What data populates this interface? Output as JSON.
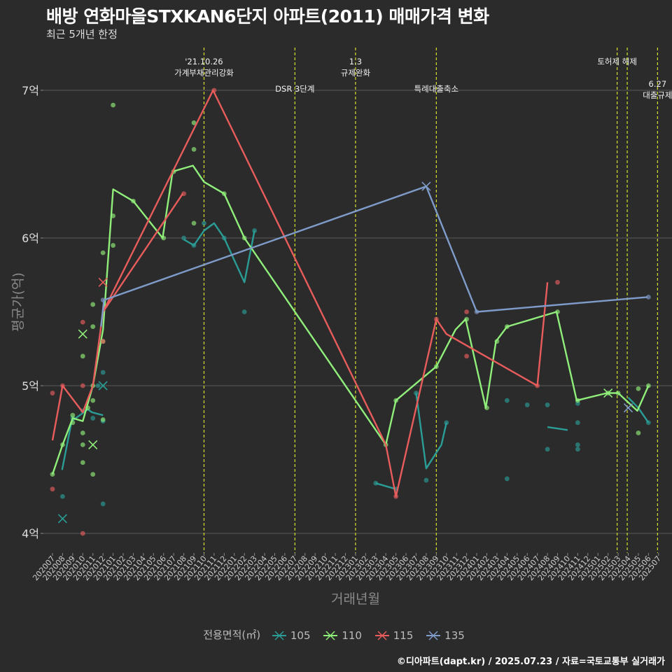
{
  "title": "배방 연화마을STXKAN6단지 아파트(2011) 매매가격 변화",
  "subtitle": "최근 5개년 한정",
  "caption": "©디아파트(dapt.kr) / 2025.07.23 / 자료=국토교통부 실거래가",
  "colors": {
    "background": "#2b2b2b",
    "grid": "#5a5a5a",
    "vline": "#d4e02a",
    "s105": "#2a9d96",
    "s110": "#90ee7a",
    "s115": "#e85c5c",
    "s135": "#7f9bc9"
  },
  "legend": {
    "title": "전용면적(㎡)",
    "items": [
      {
        "label": "105",
        "color": "#2a9d96"
      },
      {
        "label": "110",
        "color": "#90ee7a"
      },
      {
        "label": "115",
        "color": "#e85c5c"
      },
      {
        "label": "135",
        "color": "#7f9bc9"
      }
    ]
  },
  "chart_data": {
    "type": "line",
    "title": "배방 연화마을STXKAN6단지 아파트(2011) 매매가격 변화",
    "xlabel": "거래년월",
    "ylabel": "평균가(억)",
    "ylim": [
      3.85,
      7.3
    ],
    "yticks": [
      {
        "value": 4,
        "label": "4억"
      },
      {
        "value": 5,
        "label": "5억"
      },
      {
        "value": 6,
        "label": "6억"
      },
      {
        "value": 7,
        "label": "7억"
      }
    ],
    "categories": [
      "202007",
      "202008",
      "202009",
      "202010",
      "202011",
      "202012",
      "202101",
      "202102",
      "202103",
      "202104",
      "202105",
      "202106",
      "202107",
      "202108",
      "202109",
      "202110",
      "202111",
      "202112",
      "202201",
      "202202",
      "202203",
      "202204",
      "202205",
      "202206",
      "202207",
      "202208",
      "202209",
      "202210",
      "202211",
      "202212",
      "202301",
      "202302",
      "202303",
      "202304",
      "202305",
      "202306",
      "202307",
      "202308",
      "202309",
      "202310",
      "202311",
      "202312",
      "202401",
      "202402",
      "202403",
      "202404",
      "202405",
      "202406",
      "202407",
      "202408",
      "202409",
      "202410",
      "202411",
      "202412",
      "202501",
      "202502",
      "202503",
      "202504",
      "202505",
      "202506",
      "202507"
    ],
    "annotations": [
      {
        "at": 15.0,
        "lines": [
          "'21.10.26",
          "가계부채관리강화"
        ],
        "level": 0
      },
      {
        "at": 24.0,
        "lines": [
          "DSR 3단계"
        ],
        "level": 1
      },
      {
        "at": 30.0,
        "lines": [
          "1.3",
          "규제완화"
        ],
        "level": 0
      },
      {
        "at": 38.0,
        "lines": [
          "특례대출축소"
        ],
        "level": 1
      },
      {
        "at": 55.9,
        "lines": [
          "토허제 해제"
        ],
        "level": 0
      },
      {
        "at": 56.9,
        "lines": [],
        "level": 0
      },
      {
        "at": 59.9,
        "lines": [
          "6.27",
          "대출규제"
        ],
        "level": 2
      }
    ],
    "series": [
      {
        "name": "105",
        "color": "#2a9d96",
        "line": [
          [
            0.95,
            4.43
          ],
          [
            1.9,
            4.76
          ],
          [
            3.5,
            4.84
          ],
          [
            3.9,
            4.82
          ],
          [
            5,
            4.8
          ],
          [
            null,
            null
          ],
          [
            13,
            5.99
          ],
          [
            14,
            5.95
          ],
          [
            15,
            6.05
          ],
          [
            16,
            6.1
          ],
          [
            17,
            6.0
          ],
          [
            18,
            5.85
          ],
          [
            19,
            5.7
          ],
          [
            20,
            6.05
          ],
          [
            null,
            null
          ],
          [
            32,
            4.34
          ],
          [
            34,
            4.3
          ],
          [
            null,
            null
          ],
          [
            36,
            4.95
          ],
          [
            37,
            4.44
          ],
          [
            38.5,
            4.6
          ],
          [
            39,
            4.75
          ],
          [
            null,
            null
          ],
          [
            49,
            4.72
          ],
          [
            51,
            4.7
          ],
          [
            null,
            null
          ],
          [
            57,
            4.92
          ],
          [
            58,
            4.85
          ],
          [
            59,
            4.75
          ]
        ],
        "points": [
          [
            1,
            4.25
          ],
          [
            2,
            4.78
          ],
          [
            3,
            4.83
          ],
          [
            4,
            4.78
          ],
          [
            4.5,
            5.0
          ],
          [
            5,
            5.09
          ],
          [
            5,
            4.76
          ],
          [
            5,
            4.2
          ],
          [
            13,
            6.0
          ],
          [
            14,
            5.95
          ],
          [
            15,
            6.1
          ],
          [
            17,
            6.0
          ],
          [
            19,
            5.5
          ],
          [
            20,
            6.05
          ],
          [
            32,
            4.34
          ],
          [
            34,
            4.3
          ],
          [
            36,
            4.95
          ],
          [
            37,
            4.36
          ],
          [
            39,
            4.75
          ],
          [
            45,
            4.9
          ],
          [
            45,
            4.37
          ],
          [
            47,
            4.87
          ],
          [
            49,
            4.87
          ],
          [
            49,
            4.57
          ],
          [
            52,
            4.88
          ],
          [
            52,
            4.75
          ],
          [
            52,
            4.6
          ],
          [
            52,
            4.57
          ],
          [
            59,
            4.75
          ]
        ],
        "crosses": [
          [
            1,
            4.1
          ],
          [
            5,
            5.0
          ]
        ]
      },
      {
        "name": "110",
        "color": "#90ee7a",
        "line": [
          [
            0,
            4.4
          ],
          [
            1,
            4.6
          ],
          [
            2,
            4.78
          ],
          [
            3,
            4.76
          ],
          [
            4,
            5.0
          ],
          [
            5,
            5.38
          ],
          [
            6,
            6.33
          ],
          [
            8,
            6.25
          ],
          [
            10.9,
            6.0
          ],
          [
            11.9,
            6.45
          ],
          [
            13.9,
            6.49
          ],
          [
            15,
            6.38
          ],
          [
            17,
            6.3
          ],
          [
            19,
            6.0
          ],
          [
            33,
            4.6
          ],
          [
            34,
            4.9
          ],
          [
            35.9,
            5.01
          ],
          [
            38,
            5.13
          ],
          [
            39.9,
            5.38
          ],
          [
            40.9,
            5.45
          ],
          [
            42.9,
            4.85
          ],
          [
            43.9,
            5.3
          ],
          [
            45,
            5.4
          ],
          [
            49.9,
            5.5
          ],
          [
            51.9,
            4.9
          ],
          [
            54.9,
            4.95
          ],
          [
            56,
            4.95
          ],
          [
            57.9,
            4.83
          ],
          [
            59,
            5.0
          ]
        ],
        "points": [
          [
            0,
            4.4
          ],
          [
            1,
            4.6
          ],
          [
            2,
            4.8
          ],
          [
            2,
            4.75
          ],
          [
            3,
            5.2
          ],
          [
            3,
            4.6
          ],
          [
            3,
            4.48
          ],
          [
            3,
            4.68
          ],
          [
            3.5,
            4.85
          ],
          [
            4,
            5.55
          ],
          [
            4,
            5.4
          ],
          [
            4,
            5.0
          ],
          [
            4,
            4.9
          ],
          [
            4,
            4.4
          ],
          [
            5,
            5.9
          ],
          [
            5,
            5.3
          ],
          [
            5,
            4.77
          ],
          [
            6,
            6.9
          ],
          [
            6,
            6.15
          ],
          [
            6,
            5.95
          ],
          [
            8,
            6.25
          ],
          [
            11,
            6.0
          ],
          [
            12,
            6.45
          ],
          [
            14,
            6.78
          ],
          [
            14,
            6.6
          ],
          [
            14,
            6.1
          ],
          [
            17,
            6.3
          ],
          [
            19,
            6.0
          ],
          [
            33,
            4.6
          ],
          [
            34,
            4.9
          ],
          [
            38,
            5.13
          ],
          [
            41,
            5.45
          ],
          [
            43,
            4.85
          ],
          [
            44,
            5.3
          ],
          [
            45,
            5.4
          ],
          [
            50,
            5.5
          ],
          [
            52,
            4.9
          ],
          [
            55,
            4.95
          ],
          [
            56,
            4.95
          ],
          [
            58,
            4.98
          ],
          [
            58,
            4.68
          ],
          [
            59,
            5.0
          ]
        ],
        "crosses": [
          [
            3,
            5.35
          ],
          [
            4,
            4.6
          ],
          [
            55,
            4.95
          ]
        ]
      },
      {
        "name": "115",
        "color": "#e85c5c",
        "line": [
          [
            0,
            4.63
          ],
          [
            1,
            5.0
          ],
          [
            3,
            4.82
          ],
          [
            4,
            5.0
          ],
          [
            5,
            5.5
          ],
          [
            12.9,
            6.3
          ],
          [
            null,
            null
          ],
          [
            5,
            5.5
          ],
          [
            15.9,
            7.0
          ],
          [
            33,
            4.6
          ],
          [
            34,
            4.25
          ],
          [
            38,
            5.45
          ],
          [
            39,
            5.35
          ],
          [
            48,
            5.0
          ],
          [
            49,
            5.7
          ]
        ],
        "points": [
          [
            0,
            4.95
          ],
          [
            0,
            4.3
          ],
          [
            1,
            5.0
          ],
          [
            3,
            5.43
          ],
          [
            3,
            5.0
          ],
          [
            3,
            4.0
          ],
          [
            5,
            5.3
          ],
          [
            13,
            6.3
          ],
          [
            16,
            7.0
          ],
          [
            34,
            4.25
          ],
          [
            38,
            5.45
          ],
          [
            41,
            5.5
          ],
          [
            41,
            5.2
          ],
          [
            48,
            5.0
          ],
          [
            50,
            5.7
          ]
        ],
        "crosses": [
          [
            5,
            5.7
          ]
        ]
      },
      {
        "name": "135",
        "color": "#7f9bc9",
        "line": [
          [
            4.8,
            5.4
          ],
          [
            5.1,
            5.58
          ],
          [
            37,
            6.35
          ],
          [
            42,
            5.5
          ],
          [
            58.9,
            5.6
          ]
        ],
        "points": [
          [
            5,
            5.58
          ],
          [
            42,
            5.5
          ],
          [
            59,
            5.6
          ]
        ],
        "crosses": [
          [
            37,
            6.35
          ],
          [
            57,
            4.85
          ]
        ]
      }
    ]
  }
}
